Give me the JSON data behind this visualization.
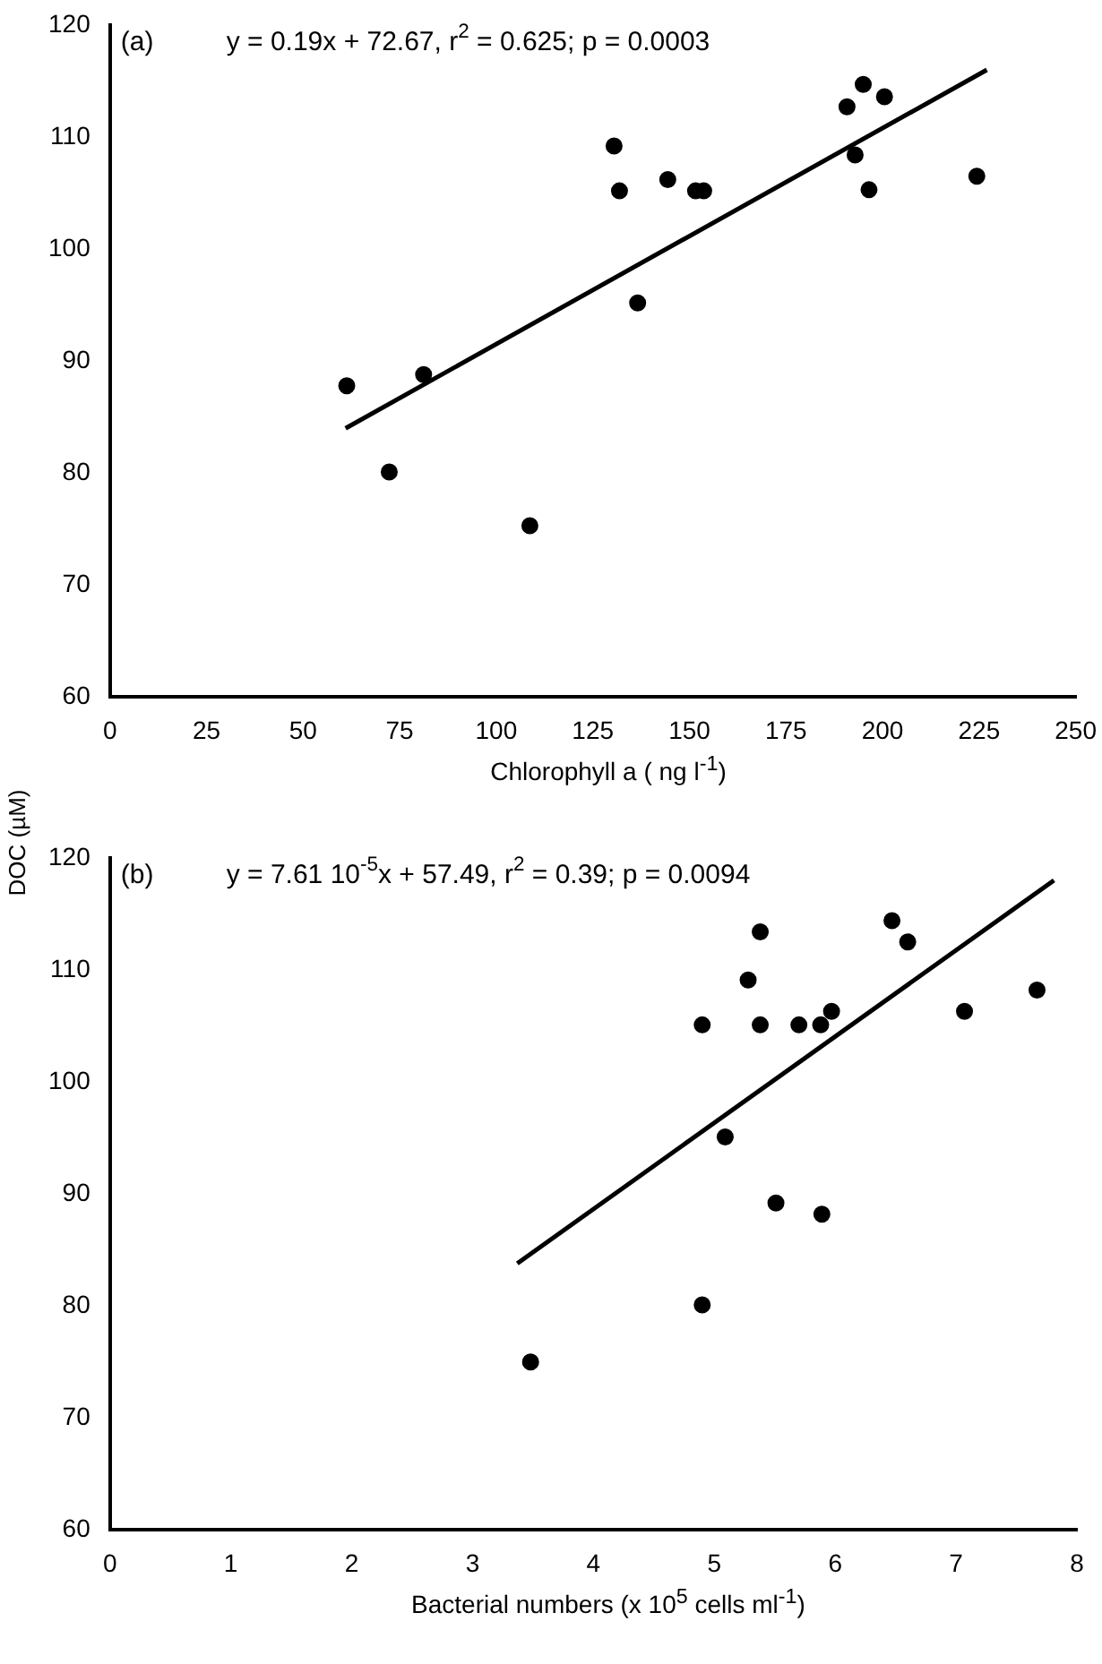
{
  "chart_data": [
    {
      "type": "scatter",
      "title": "(a)",
      "annotations": [
        "y = 0.19x + 72.67, r$^{2}$ = 0.625; p = 0.0003"
      ],
      "xlabel": "Chlorophyll a ( ng l$^{-1}$)",
      "ylabel": "DOC (µM)",
      "grid": false,
      "legend": false,
      "xlim": [
        0,
        250
      ],
      "xticks": [
        0,
        25,
        50,
        75,
        100,
        125,
        150,
        175,
        200,
        225,
        250
      ],
      "ylim": [
        60,
        120
      ],
      "yticks": [
        60,
        70,
        80,
        90,
        100,
        110,
        120
      ],
      "series": [
        {
          "color": "#000000",
          "marker": "circle",
          "x": [
            61.3,
            72.3,
            81.2,
            108.7,
            130.5,
            131.9,
            136.6,
            144.4,
            151.6,
            153.7,
            190.8,
            192.9,
            195,
            196.5,
            200.5,
            224.4
          ],
          "values": [
            87.8,
            80.1,
            88.8,
            75.3,
            109.2,
            105.2,
            95.2,
            106.2,
            105.2,
            105.2,
            112.7,
            108.4,
            114.7,
            105.3,
            113.6,
            106.5
          ]
        },
        {
          "type": "line",
          "color": "#000000",
          "marker": "none",
          "x": [
            61,
            227
          ],
          "values": [
            84,
            116
          ]
        }
      ]
    },
    {
      "type": "scatter",
      "title": "(b)",
      "annotations": [
        "y = 7.61 10$^{-5}$x + 57.49, r$^{2}$ = 0.39; p = 0.0094"
      ],
      "xlabel": "Bacterial  numbers (x 10$^{5}$ cells ml$^{-1}$)",
      "grid": false,
      "legend": false,
      "xlim": [
        0,
        8
      ],
      "xticks": [
        0,
        1,
        2,
        3,
        4,
        5,
        6,
        7,
        8
      ],
      "ylim": [
        60,
        120
      ],
      "yticks": [
        60,
        70,
        80,
        90,
        100,
        110,
        120
      ],
      "series": [
        {
          "color": "#000000",
          "marker": "circle",
          "x": [
            3.48,
            4.9,
            4.9,
            5.09,
            5.28,
            5.38,
            5.38,
            5.51,
            5.7,
            5.88,
            5.89,
            5.97,
            6.47,
            6.6,
            7.07,
            7.67
          ],
          "values": [
            75.0,
            80.1,
            105.1,
            95.1,
            109.1,
            113.4,
            105.1,
            89.2,
            105.1,
            105.1,
            88.2,
            106.3,
            114.4,
            112.5,
            106.3,
            108.2
          ]
        },
        {
          "type": "line",
          "color": "#000000",
          "marker": "none",
          "x": [
            3.37,
            7.81
          ],
          "values": [
            83.8,
            118.0
          ]
        }
      ]
    }
  ]
}
